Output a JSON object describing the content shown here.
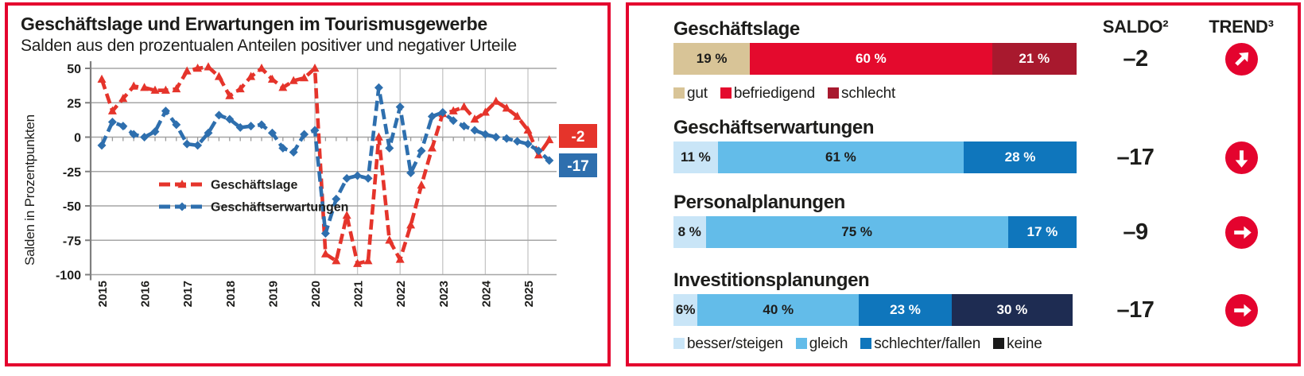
{
  "left_panel": {
    "title": "Geschäftslage und Erwartungen im Tourismusgewerbe",
    "subtitle": "Salden aus den prozentualen Anteilen positiver und negativer Urteile",
    "ylabel": "Salden in Prozentpunkten"
  },
  "chart_data": {
    "type": "line",
    "title": "Geschäftslage und Erwartungen im Tourismusgewerbe",
    "ylabel": "Salden in Prozentpunkten",
    "ylim": [
      -100,
      50
    ],
    "yticks": [
      50,
      25,
      0,
      -25,
      -50,
      -75,
      -100
    ],
    "x_years": [
      "2015",
      "2016",
      "2017",
      "2018",
      "2019",
      "2020",
      "2021",
      "2022",
      "2023",
      "2024",
      "2025"
    ],
    "points_per_year": 4,
    "grid": true,
    "legend_position": "inside-left",
    "series": [
      {
        "name": "Geschäftslage",
        "color": "#e5342b",
        "marker": "triangle",
        "end_label": "-2",
        "values": [
          42,
          19,
          28,
          37,
          36,
          34,
          34,
          35,
          48,
          50,
          51,
          44,
          30,
          35,
          44,
          50,
          42,
          36,
          41,
          43,
          50,
          -85,
          -90,
          -57,
          -92,
          -90,
          0,
          -75,
          -89,
          -64,
          -35,
          -8,
          17,
          19,
          22,
          13,
          18,
          26,
          21,
          15,
          5,
          -13,
          -2
        ]
      },
      {
        "name": "Geschäftserwartungen",
        "color": "#2e6fae",
        "marker": "diamond",
        "end_label": "-17",
        "values": [
          -6,
          11,
          8,
          2,
          0,
          4,
          19,
          9,
          -5,
          -6,
          3,
          16,
          13,
          7,
          8,
          9,
          3,
          -8,
          -11,
          2,
          5,
          -70,
          -45,
          -30,
          -28,
          -30,
          36,
          -8,
          22,
          -26,
          -10,
          15,
          18,
          12,
          8,
          5,
          2,
          0,
          -1,
          -3,
          -5,
          -10,
          -17
        ]
      }
    ]
  },
  "right_panel": {
    "saldo_header": "SALDO²",
    "trend_header": "TREND³",
    "rows": [
      {
        "heading": "Geschäftslage",
        "segments": [
          {
            "label": "19 %",
            "value": 19,
            "color": "#d8c497",
            "text": "dark"
          },
          {
            "label": "60 %",
            "value": 60,
            "color": "#e40a2d",
            "text": "light"
          },
          {
            "label": "21 %",
            "value": 21,
            "color": "#a8192e",
            "text": "light"
          }
        ],
        "saldo": "–2",
        "trend": "up-right",
        "legend": [
          {
            "label": "gut",
            "color": "#d8c497"
          },
          {
            "label": "befriedigend",
            "color": "#e40a2d"
          },
          {
            "label": "schlecht",
            "color": "#a8192e"
          }
        ]
      },
      {
        "heading": "Geschäftserwartungen",
        "segments": [
          {
            "label": "11 %",
            "value": 11,
            "color": "#c9e5f7",
            "text": "dark"
          },
          {
            "label": "61 %",
            "value": 61,
            "color": "#63bce9",
            "text": "dark"
          },
          {
            "label": "28 %",
            "value": 28,
            "color": "#0f76bc",
            "text": "light"
          }
        ],
        "saldo": "–17",
        "trend": "down"
      },
      {
        "heading": "Personalplanungen",
        "segments": [
          {
            "label": "8 %",
            "value": 8,
            "color": "#c9e5f7",
            "text": "dark"
          },
          {
            "label": "75 %",
            "value": 75,
            "color": "#63bce9",
            "text": "dark"
          },
          {
            "label": "17 %",
            "value": 17,
            "color": "#0f76bc",
            "text": "light"
          }
        ],
        "saldo": "–9",
        "trend": "right"
      },
      {
        "heading": "Investitionsplanungen",
        "segments": [
          {
            "label": "6%",
            "value": 6,
            "color": "#c9e5f7",
            "text": "dark"
          },
          {
            "label": "40 %",
            "value": 40,
            "color": "#63bce9",
            "text": "dark"
          },
          {
            "label": "23 %",
            "value": 23,
            "color": "#0f76bc",
            "text": "light"
          },
          {
            "label": "30 %",
            "value": 30,
            "color": "#1e2c52",
            "text": "light"
          }
        ],
        "saldo": "–17",
        "trend": "right",
        "legend": [
          {
            "label": "besser/steigen",
            "color": "#c9e5f7"
          },
          {
            "label": "gleich",
            "color": "#63bce9"
          },
          {
            "label": "schlechter/fallen",
            "color": "#0f76bc"
          },
          {
            "label": "keine",
            "color": "#1a1a1a"
          }
        ]
      }
    ]
  },
  "colors": {
    "accent_red": "#e4032e",
    "line_red": "#e5342b",
    "line_blue": "#2e6fae",
    "text": "#1d1d1b",
    "grid": "#a6a6a6"
  }
}
